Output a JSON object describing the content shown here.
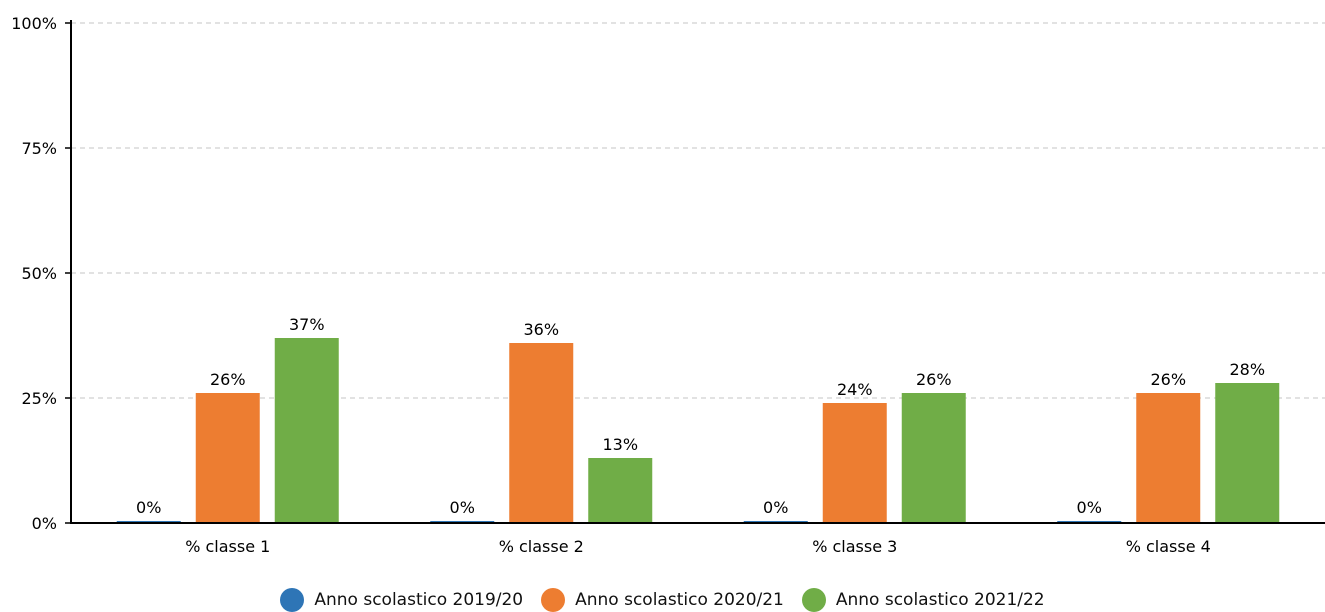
{
  "chart_data": {
    "type": "bar",
    "title": "",
    "xlabel": "",
    "ylabel": "",
    "categories": [
      "% classe 1",
      "% classe 2",
      "% classe 3",
      "% classe 4"
    ],
    "series": [
      {
        "name": "Anno scolastico 2019/20",
        "color": "#2e75b6",
        "values": [
          0,
          0,
          0,
          0
        ],
        "labels": [
          "0%",
          "0%",
          "0%",
          "0%"
        ]
      },
      {
        "name": "Anno scolastico 2020/21",
        "color": "#ed7d31",
        "values": [
          26,
          36,
          24,
          26
        ],
        "labels": [
          "26%",
          "36%",
          "24%",
          "26%"
        ]
      },
      {
        "name": "Anno scolastico 2021/22",
        "color": "#70ad47",
        "values": [
          37,
          13,
          26,
          28
        ],
        "labels": [
          "37%",
          "13%",
          "26%",
          "28%"
        ]
      }
    ],
    "ylim": [
      0,
      100
    ],
    "yticks": [
      0,
      25,
      50,
      75,
      100
    ],
    "ytick_labels": [
      "0%",
      "25%",
      "50%",
      "75%",
      "100%"
    ],
    "grid": true,
    "legend_position": "bottom"
  }
}
